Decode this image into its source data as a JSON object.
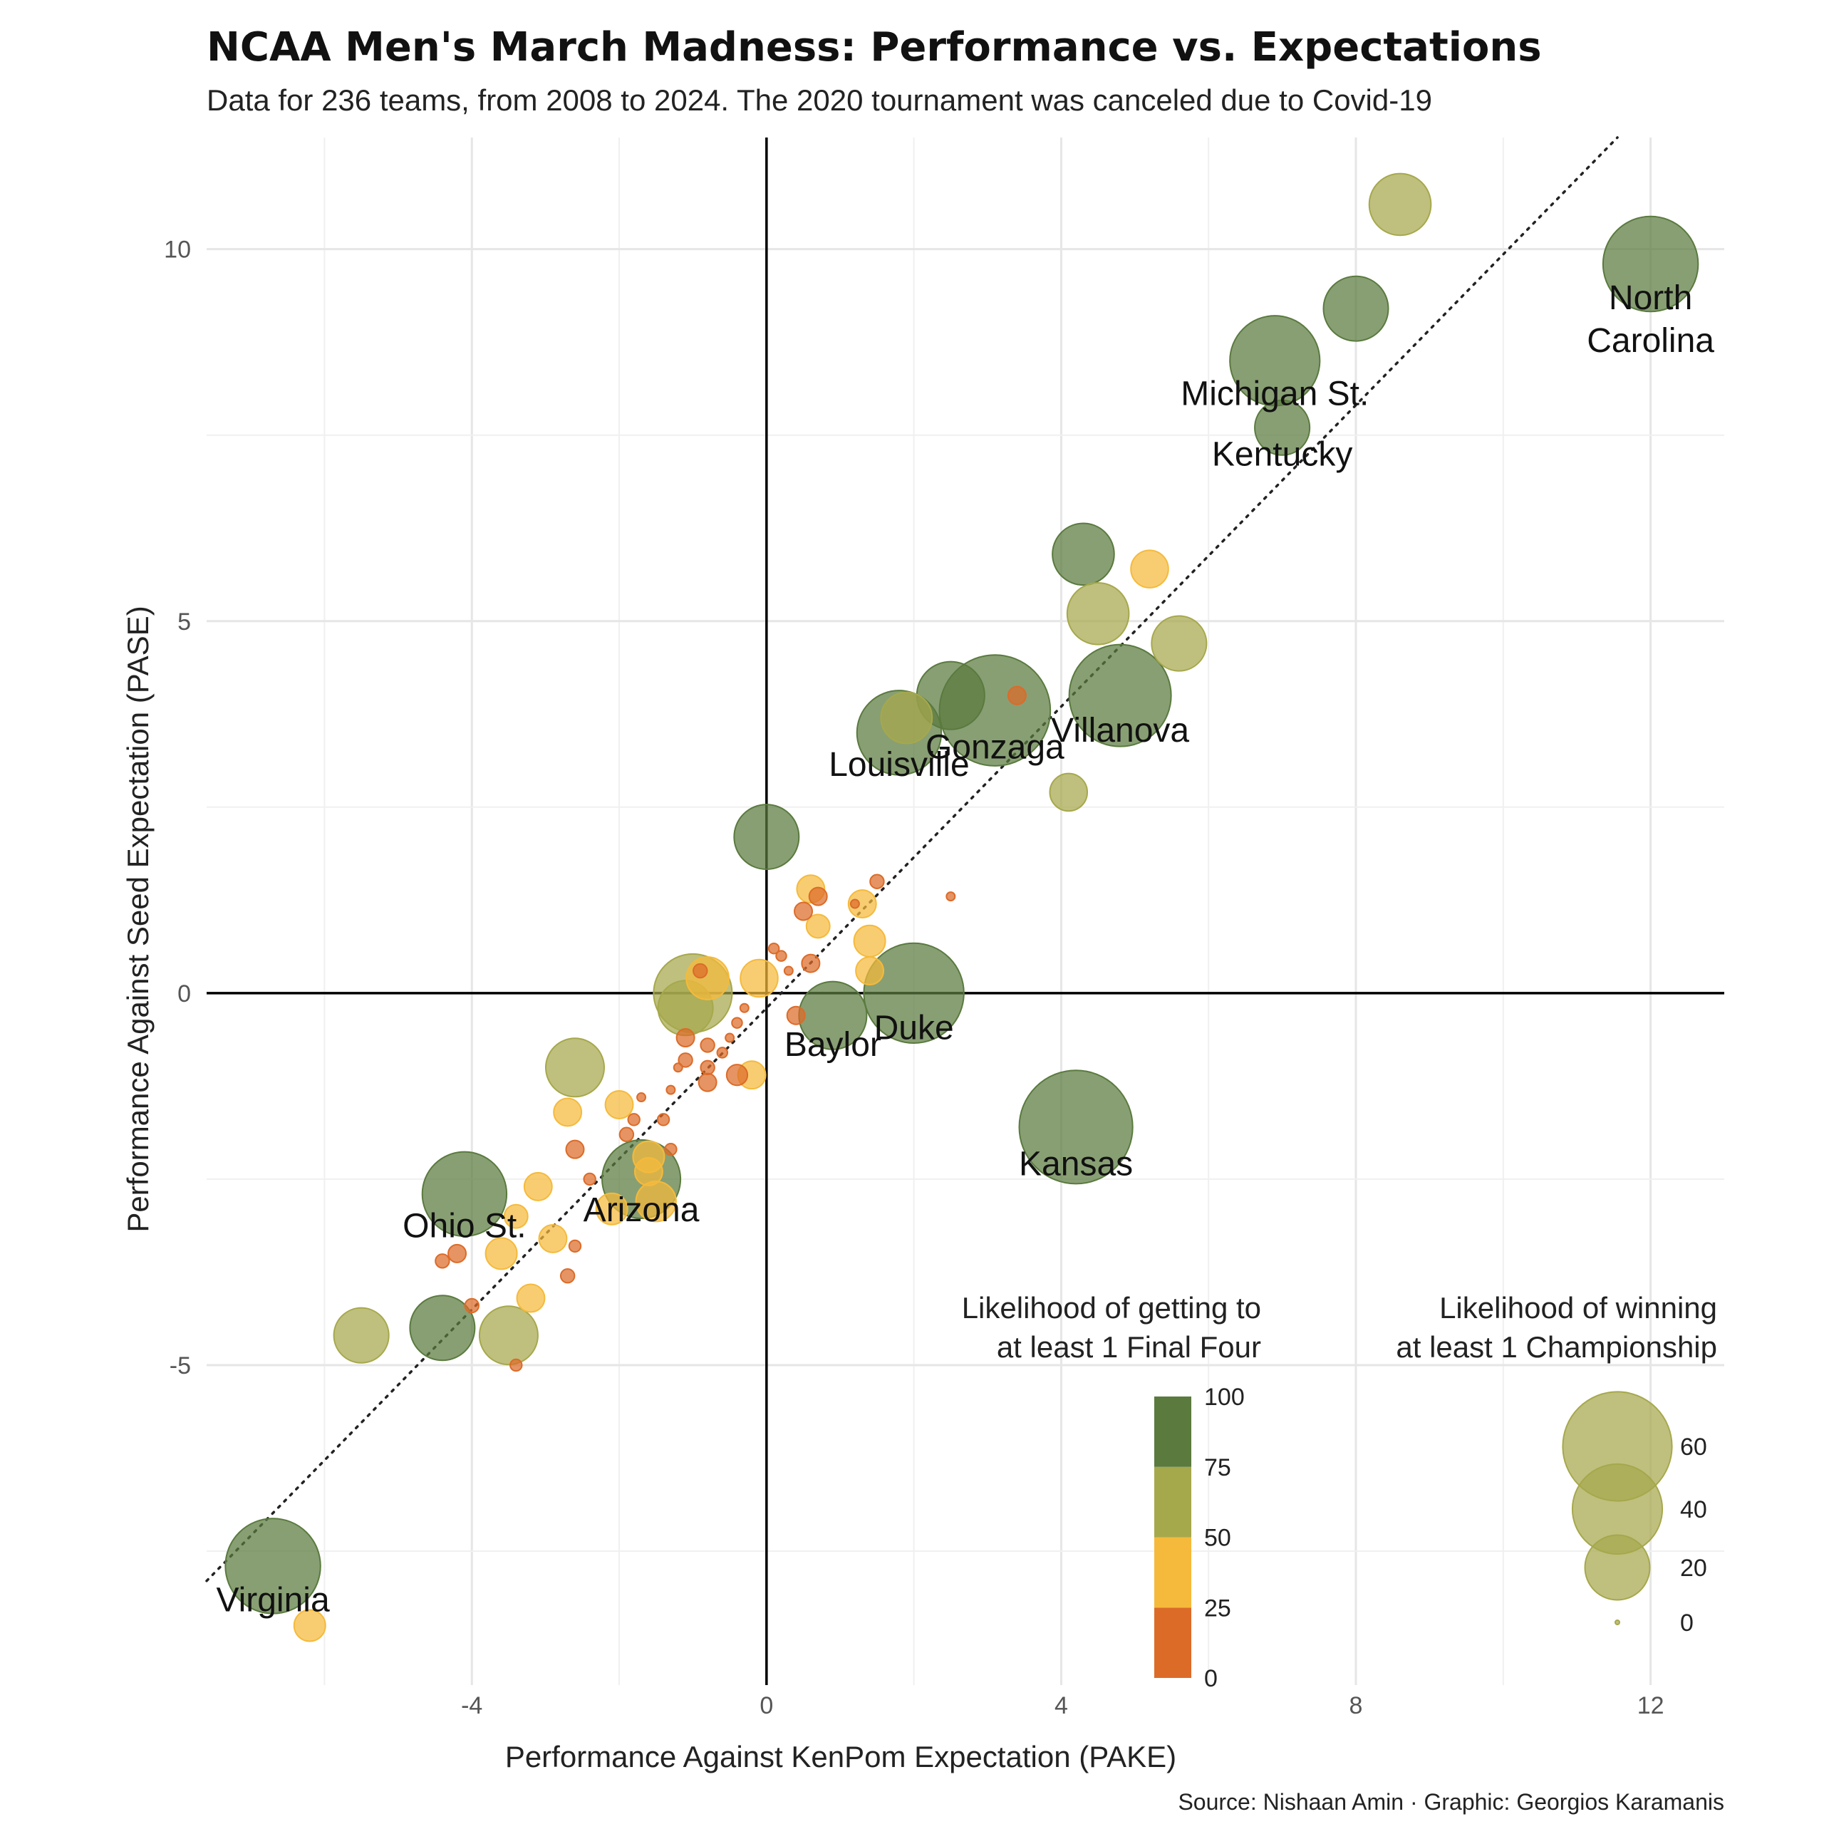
{
  "chart_data": {
    "type": "scatter",
    "title": "NCAA Men's March Madness: Performance vs. Expectations",
    "subtitle": "Data for 236 teams, from 2008 to 2024. The 2020 tournament was canceled due to Covid-19",
    "xlabel": "Performance Against KenPom Expectation (PAKE)",
    "ylabel": "Performance Against Seed Expectation (PASE)",
    "caption": "Source: Nishaan Amin · Graphic: Georgios Karamanis",
    "xlim": [
      -7.6,
      13.0
    ],
    "ylim": [
      -9.3,
      11.5
    ],
    "x_ticks": [
      -4,
      0,
      4,
      8,
      12
    ],
    "x_tick_labels": [
      "-4",
      "0",
      "4",
      "8",
      "12"
    ],
    "y_ticks": [
      -5,
      0,
      5,
      10
    ],
    "y_tick_labels": [
      "-5",
      "0",
      "5",
      "10"
    ],
    "grid": true,
    "reference_line": "dotted diagonal",
    "color_legend": {
      "title_lines": [
        "Likelihood of getting to",
        "at least 1 Final Four"
      ],
      "breaks": [
        0,
        25,
        50,
        75,
        100
      ],
      "tick_labels": [
        "0",
        "25",
        "50",
        "75",
        "100"
      ],
      "colors": [
        "#dc6b28",
        "#f5ba3b",
        "#a6a84c",
        "#5a7a3e"
      ]
    },
    "size_legend": {
      "title_lines": [
        "Likelihood of winning",
        "at least 1 Championship"
      ],
      "values": [
        60,
        40,
        20,
        0
      ],
      "labels": [
        "60",
        "40",
        "20",
        "0"
      ]
    },
    "points": [
      {
        "x": 12.0,
        "y": 9.8,
        "f4": 90,
        "champ": 45,
        "label": "North Carolina"
      },
      {
        "x": 8.6,
        "y": 10.6,
        "f4": 60,
        "champ": 18
      },
      {
        "x": 8.0,
        "y": 9.2,
        "f4": 90,
        "champ": 20
      },
      {
        "x": 6.9,
        "y": 8.5,
        "f4": 90,
        "champ": 40,
        "label": "Michigan St."
      },
      {
        "x": 7.0,
        "y": 7.6,
        "f4": 90,
        "champ": 14,
        "label": "Kentucky"
      },
      {
        "x": 4.3,
        "y": 5.9,
        "f4": 90,
        "champ": 18
      },
      {
        "x": 5.2,
        "y": 5.7,
        "f4": 45,
        "champ": 6
      },
      {
        "x": 4.5,
        "y": 5.1,
        "f4": 60,
        "champ": 18
      },
      {
        "x": 5.6,
        "y": 4.7,
        "f4": 60,
        "champ": 14
      },
      {
        "x": 4.8,
        "y": 4.0,
        "f4": 90,
        "champ": 52,
        "label": "Villanova"
      },
      {
        "x": 2.5,
        "y": 4.0,
        "f4": 90,
        "champ": 22
      },
      {
        "x": 3.1,
        "y": 3.8,
        "f4": 90,
        "champ": 62,
        "label": "Gonzaga"
      },
      {
        "x": 3.4,
        "y": 4.0,
        "f4": 5,
        "champ": 1
      },
      {
        "x": 1.9,
        "y": 3.7,
        "f4": 60,
        "champ": 12
      },
      {
        "x": 1.8,
        "y": 3.5,
        "f4": 90,
        "champ": 35,
        "label": "Louisville"
      },
      {
        "x": 4.1,
        "y": 2.7,
        "f4": 60,
        "champ": 6
      },
      {
        "x": 0.0,
        "y": 2.1,
        "f4": 90,
        "champ": 20
      },
      {
        "x": 2.0,
        "y": 0.0,
        "f4": 90,
        "champ": 50,
        "label": "Duke"
      },
      {
        "x": 0.9,
        "y": -0.3,
        "f4": 90,
        "champ": 22,
        "label": "Baylor"
      },
      {
        "x": 4.2,
        "y": -1.8,
        "f4": 90,
        "champ": 65,
        "label": "Kansas"
      },
      {
        "x": -1.0,
        "y": 0.0,
        "f4": 60,
        "champ": 30
      },
      {
        "x": -1.1,
        "y": -0.2,
        "f4": 60,
        "champ": 14
      },
      {
        "x": -2.6,
        "y": -1.0,
        "f4": 60,
        "champ": 16
      },
      {
        "x": -1.7,
        "y": -2.5,
        "f4": 90,
        "champ": 30,
        "label": "Arizona"
      },
      {
        "x": -4.1,
        "y": -2.7,
        "f4": 90,
        "champ": 35,
        "label": "Ohio St."
      },
      {
        "x": -4.4,
        "y": -4.5,
        "f4": 90,
        "champ": 20
      },
      {
        "x": -5.5,
        "y": -4.6,
        "f4": 60,
        "champ": 14
      },
      {
        "x": -3.5,
        "y": -4.6,
        "f4": 60,
        "champ": 16
      },
      {
        "x": -6.7,
        "y": -7.7,
        "f4": 90,
        "champ": 45,
        "label": "Virginia"
      },
      {
        "x": -6.2,
        "y": -8.5,
        "f4": 40,
        "champ": 4
      },
      {
        "x": 0.6,
        "y": 1.4,
        "f4": 40,
        "champ": 3
      },
      {
        "x": 1.3,
        "y": 1.2,
        "f4": 40,
        "champ": 3
      },
      {
        "x": 1.4,
        "y": 0.7,
        "f4": 40,
        "champ": 4
      },
      {
        "x": 1.4,
        "y": 0.3,
        "f4": 40,
        "champ": 3
      },
      {
        "x": 0.7,
        "y": 0.9,
        "f4": 40,
        "champ": 2
      },
      {
        "x": -0.1,
        "y": 0.2,
        "f4": 40,
        "champ": 6
      },
      {
        "x": -0.8,
        "y": 0.2,
        "f4": 40,
        "champ": 8
      },
      {
        "x": -0.2,
        "y": -1.1,
        "f4": 40,
        "champ": 3
      },
      {
        "x": -2.0,
        "y": -1.5,
        "f4": 40,
        "champ": 3
      },
      {
        "x": -2.7,
        "y": -1.6,
        "f4": 40,
        "champ": 3
      },
      {
        "x": -1.6,
        "y": -2.2,
        "f4": 40,
        "champ": 4
      },
      {
        "x": -1.6,
        "y": -2.4,
        "f4": 40,
        "champ": 3
      },
      {
        "x": -1.5,
        "y": -2.8,
        "f4": 40,
        "champ": 7
      },
      {
        "x": -2.1,
        "y": -2.9,
        "f4": 40,
        "champ": 4
      },
      {
        "x": -3.1,
        "y": -2.6,
        "f4": 40,
        "champ": 3
      },
      {
        "x": -3.4,
        "y": -3.0,
        "f4": 40,
        "champ": 2
      },
      {
        "x": -2.9,
        "y": -3.3,
        "f4": 40,
        "champ": 3
      },
      {
        "x": -3.6,
        "y": -3.5,
        "f4": 40,
        "champ": 4
      },
      {
        "x": -3.2,
        "y": -4.1,
        "f4": 40,
        "champ": 3
      },
      {
        "x": 0.7,
        "y": 1.3,
        "f4": 10,
        "champ": 1
      },
      {
        "x": 0.5,
        "y": 1.1,
        "f4": 10,
        "champ": 1
      },
      {
        "x": 0.6,
        "y": 0.4,
        "f4": 10,
        "champ": 1
      },
      {
        "x": 1.5,
        "y": 1.5,
        "f4": 10,
        "champ": 0.5
      },
      {
        "x": 0.4,
        "y": -0.3,
        "f4": 10,
        "champ": 1
      },
      {
        "x": -0.4,
        "y": -1.1,
        "f4": 10,
        "champ": 1.5
      },
      {
        "x": -1.1,
        "y": -0.6,
        "f4": 10,
        "champ": 1
      },
      {
        "x": -1.1,
        "y": -0.9,
        "f4": 10,
        "champ": 0.5
      },
      {
        "x": -0.8,
        "y": -0.7,
        "f4": 10,
        "champ": 0.5
      },
      {
        "x": -0.8,
        "y": -1.0,
        "f4": 10,
        "champ": 0.5
      },
      {
        "x": -0.8,
        "y": -1.2,
        "f4": 10,
        "champ": 1
      },
      {
        "x": -0.9,
        "y": 0.3,
        "f4": 10,
        "champ": 0.5
      },
      {
        "x": -1.4,
        "y": -1.7,
        "f4": 10,
        "champ": 0.3
      },
      {
        "x": -1.8,
        "y": -1.7,
        "f4": 10,
        "champ": 0.3
      },
      {
        "x": -1.9,
        "y": -1.9,
        "f4": 10,
        "champ": 0.5
      },
      {
        "x": -1.3,
        "y": -2.1,
        "f4": 10,
        "champ": 0.3
      },
      {
        "x": -2.6,
        "y": -2.1,
        "f4": 10,
        "champ": 1
      },
      {
        "x": -2.4,
        "y": -2.5,
        "f4": 10,
        "champ": 0.3
      },
      {
        "x": -2.6,
        "y": -3.4,
        "f4": 10,
        "champ": 0.3
      },
      {
        "x": -2.7,
        "y": -3.8,
        "f4": 10,
        "champ": 0.5
      },
      {
        "x": -4.2,
        "y": -3.5,
        "f4": 10,
        "champ": 1
      },
      {
        "x": -4.4,
        "y": -3.6,
        "f4": 10,
        "champ": 0.5
      },
      {
        "x": -4.0,
        "y": -4.2,
        "f4": 10,
        "champ": 0.5
      },
      {
        "x": -3.4,
        "y": -5.0,
        "f4": 10,
        "champ": 0.3
      },
      {
        "x": 2.5,
        "y": 1.3,
        "f4": 10,
        "champ": 0.1
      },
      {
        "x": 1.2,
        "y": 1.2,
        "f4": 10,
        "champ": 0.1
      },
      {
        "x": 0.2,
        "y": 0.5,
        "f4": 10,
        "champ": 0.2
      },
      {
        "x": 0.3,
        "y": 0.3,
        "f4": 10,
        "champ": 0.1
      },
      {
        "x": -0.3,
        "y": -0.2,
        "f4": 10,
        "champ": 0.1
      },
      {
        "x": -0.4,
        "y": -0.4,
        "f4": 10,
        "champ": 0.2
      },
      {
        "x": -0.5,
        "y": -0.6,
        "f4": 10,
        "champ": 0.1
      },
      {
        "x": -0.6,
        "y": -0.8,
        "f4": 10,
        "champ": 0.2
      },
      {
        "x": -1.2,
        "y": -1.0,
        "f4": 10,
        "champ": 0.1
      },
      {
        "x": -1.3,
        "y": -1.3,
        "f4": 10,
        "champ": 0.1
      },
      {
        "x": -1.7,
        "y": -1.4,
        "f4": 10,
        "champ": 0.1
      },
      {
        "x": 0.1,
        "y": 0.6,
        "f4": 10,
        "champ": 0.2
      }
    ]
  }
}
